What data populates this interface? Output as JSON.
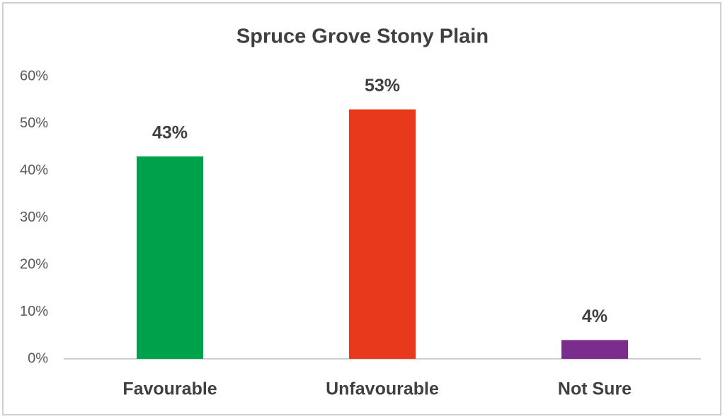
{
  "chart_data": {
    "type": "bar",
    "title": "Spruce Grove Stony Plain",
    "categories": [
      "Favourable",
      "Unfavourable",
      "Not Sure"
    ],
    "values": [
      43,
      53,
      4
    ],
    "value_labels": [
      "43%",
      "53%",
      "4%"
    ],
    "colors": [
      "#00a14b",
      "#e8391d",
      "#7b2d8e"
    ],
    "ylim": [
      0,
      60
    ],
    "yticks": [
      {
        "value": 0,
        "label": "0%"
      },
      {
        "value": 10,
        "label": "10%"
      },
      {
        "value": 20,
        "label": "20%"
      },
      {
        "value": 30,
        "label": "30%"
      },
      {
        "value": 40,
        "label": "40%"
      },
      {
        "value": 50,
        "label": "50%"
      },
      {
        "value": 60,
        "label": "60%"
      }
    ],
    "grid": false
  }
}
